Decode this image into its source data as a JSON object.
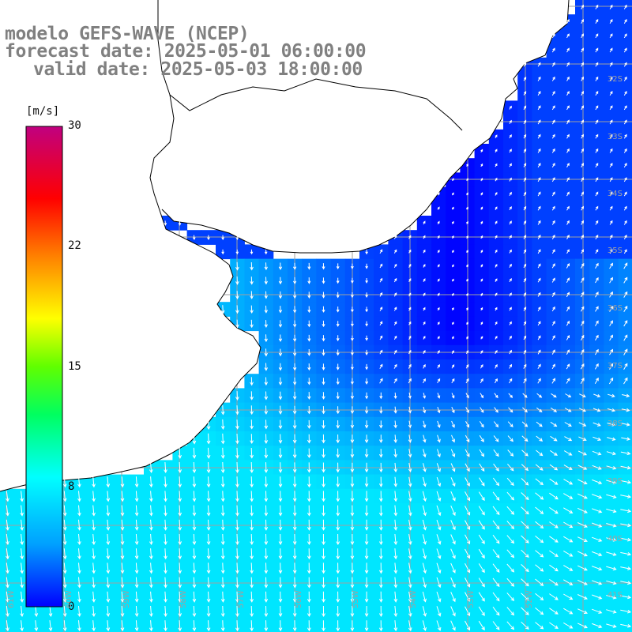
{
  "title": {
    "line1": "modelo GEFS-WAVE (NCEP)",
    "line2": "forecast date: 2025-05-01 06:00:00",
    "line3": "valid date: 2025-05-03 18:00:00"
  },
  "colorbar": {
    "unit": "[m/s]",
    "min": 0,
    "max": 30,
    "ticks": [
      "30",
      "22",
      "15",
      "8",
      "0"
    ],
    "tick_values": [
      30,
      22,
      15,
      8,
      0
    ]
  },
  "lat_labels": [
    "32S",
    "33S",
    "34S",
    "35S",
    "36S",
    "37S",
    "38S",
    "39S",
    "40S",
    "41S"
  ],
  "lon_labels": [
    "61W",
    "60W",
    "59W",
    "58W",
    "57W",
    "56W",
    "55W",
    "54W",
    "53W",
    "52W"
  ],
  "colors": {
    "land": "#ffffff",
    "coast": "#000000",
    "grid": "#a0a0a0",
    "arrow": "#ffffff",
    "title": "#808080"
  },
  "scene": {
    "description_items": [
      "wind speed field",
      "wind direction arrows",
      "coastline"
    ]
  }
}
